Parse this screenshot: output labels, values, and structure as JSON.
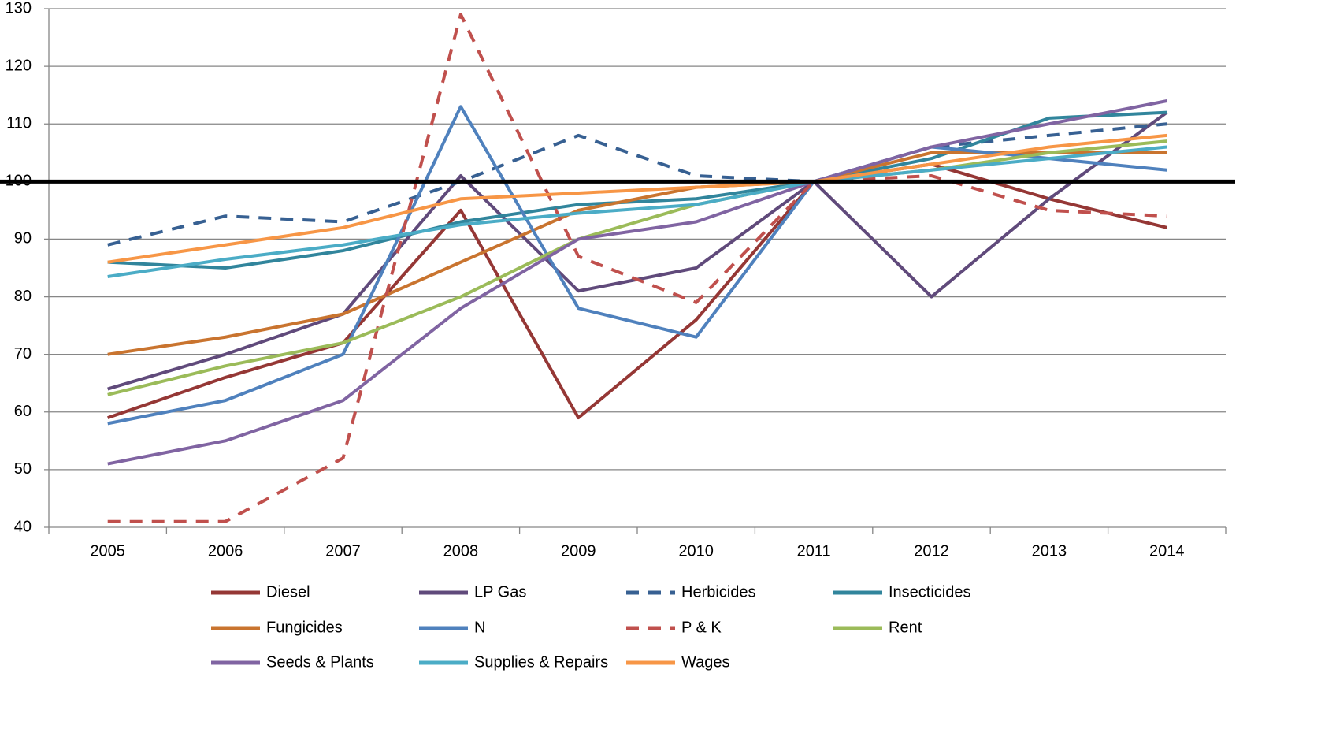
{
  "chart_data": {
    "type": "line",
    "categories": [
      "2005",
      "2006",
      "2007",
      "2008",
      "2009",
      "2010",
      "2011",
      "2012",
      "2013",
      "2014"
    ],
    "ylim": [
      40,
      130
    ],
    "yticks": [
      40,
      50,
      60,
      70,
      80,
      90,
      100,
      110,
      120,
      130
    ],
    "grid": true,
    "reference_line": {
      "value": 100,
      "color": "#000000"
    },
    "legend": "bottom",
    "series": [
      {
        "name": "Diesel",
        "color": "#953735",
        "dashed": false,
        "values": [
          59,
          66,
          72,
          95,
          59,
          76,
          100,
          103,
          97,
          92
        ]
      },
      {
        "name": "LP Gas",
        "color": "#604a7b",
        "dashed": false,
        "values": [
          64,
          70,
          77,
          101,
          81,
          85,
          100,
          80,
          97,
          112
        ]
      },
      {
        "name": "Herbicides",
        "color": "#376092",
        "dashed": true,
        "values": [
          89,
          94,
          93,
          100,
          108,
          101,
          100,
          106,
          108,
          110
        ]
      },
      {
        "name": "Insecticides",
        "color": "#31859c",
        "dashed": false,
        "values": [
          86,
          85,
          88,
          93,
          96,
          97,
          100,
          104,
          111,
          112
        ]
      },
      {
        "name": "Fungicides",
        "color": "#c9742f",
        "dashed": false,
        "values": [
          70,
          73,
          77,
          86,
          95,
          99,
          100,
          105,
          105,
          105
        ]
      },
      {
        "name": "N",
        "color": "#4f81bd",
        "dashed": false,
        "values": [
          58,
          62,
          70,
          113,
          78,
          73,
          100,
          106,
          104,
          102
        ]
      },
      {
        "name": "P & K",
        "color": "#c0504d",
        "dashed": true,
        "values": [
          41,
          41,
          52,
          129,
          87,
          79,
          100,
          101,
          95,
          94
        ]
      },
      {
        "name": "Rent",
        "color": "#9bbb59",
        "dashed": false,
        "values": [
          63,
          68,
          72,
          80,
          90,
          96,
          100,
          102,
          105,
          107
        ]
      },
      {
        "name": "Seeds & Plants",
        "color": "#8064a2",
        "dashed": false,
        "values": [
          51,
          55,
          62,
          78,
          90,
          93,
          100,
          106,
          110,
          114
        ]
      },
      {
        "name": "Supplies & Repairs",
        "color": "#4bacc6",
        "dashed": false,
        "values": [
          83.5,
          86.5,
          89,
          92.5,
          94.5,
          96,
          100,
          102,
          104,
          106
        ]
      },
      {
        "name": "Wages",
        "color": "#f79646",
        "dashed": false,
        "values": [
          86,
          89,
          92,
          97,
          98,
          99,
          100,
          103,
          106,
          108
        ]
      }
    ]
  }
}
